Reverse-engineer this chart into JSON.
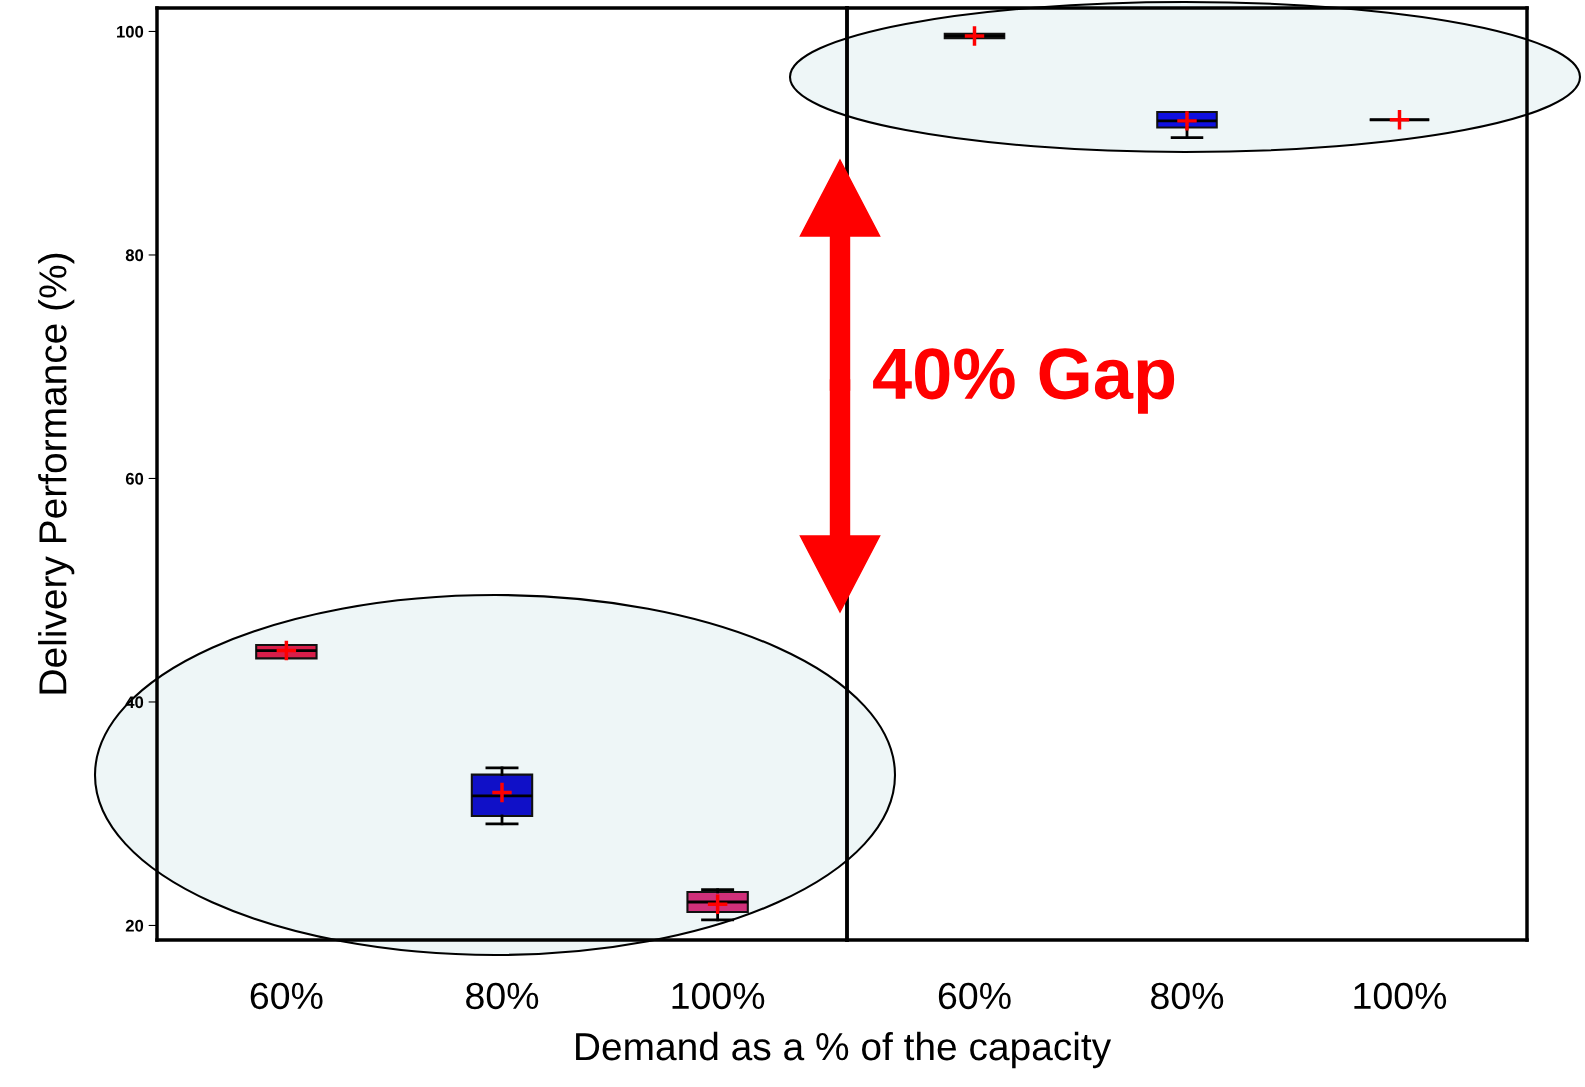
{
  "chart_data": [
    {
      "type": "box",
      "ylabel": "Delivery Performance (%)",
      "categories": [
        "60%",
        "80%",
        "100%"
      ],
      "ylim": [
        18.7,
        102.1
      ],
      "yticks": [
        20,
        40,
        60,
        80,
        100
      ],
      "grid": false,
      "colors": [
        "#d81e4a",
        "#1010c8",
        "#d0307a"
      ],
      "boxes": [
        {
          "low": 43.9,
          "q1": 43.9,
          "median": 44.6,
          "q3": 45.1,
          "high": 45.1,
          "mean": 44.6
        },
        {
          "low": 29.1,
          "q1": 29.8,
          "median": 31.6,
          "q3": 33.5,
          "high": 34.1,
          "mean": 31.9
        },
        {
          "low": 20.5,
          "q1": 21.2,
          "median": 22.1,
          "q3": 23.0,
          "high": 23.2,
          "mean": 21.9
        }
      ]
    },
    {
      "type": "box",
      "xlabel": "Demand as a % of the capacity",
      "categories": [
        "60%",
        "80%",
        "100%"
      ],
      "ylim": [
        18.7,
        102.1
      ],
      "yticks": [
        20,
        40,
        60,
        80,
        100
      ],
      "tick_labels": "x",
      "grid": false,
      "colors": [
        "#202020",
        "#1010e0",
        "#404040"
      ],
      "annotations": [
        "40% Gap"
      ],
      "boxes": [
        {
          "low": 99.4,
          "q1": 99.4,
          "median": 99.6,
          "q3": 99.8,
          "high": 99.8,
          "mean": 99.6
        },
        {
          "low": 90.5,
          "q1": 91.4,
          "median": 92.0,
          "q3": 92.8,
          "high": 92.8,
          "mean": 92.0
        },
        {
          "low": 92.1,
          "q1": 92.1,
          "median": 92.1,
          "q3": 92.1,
          "high": 92.1,
          "mean": 92.1
        }
      ]
    }
  ]
}
